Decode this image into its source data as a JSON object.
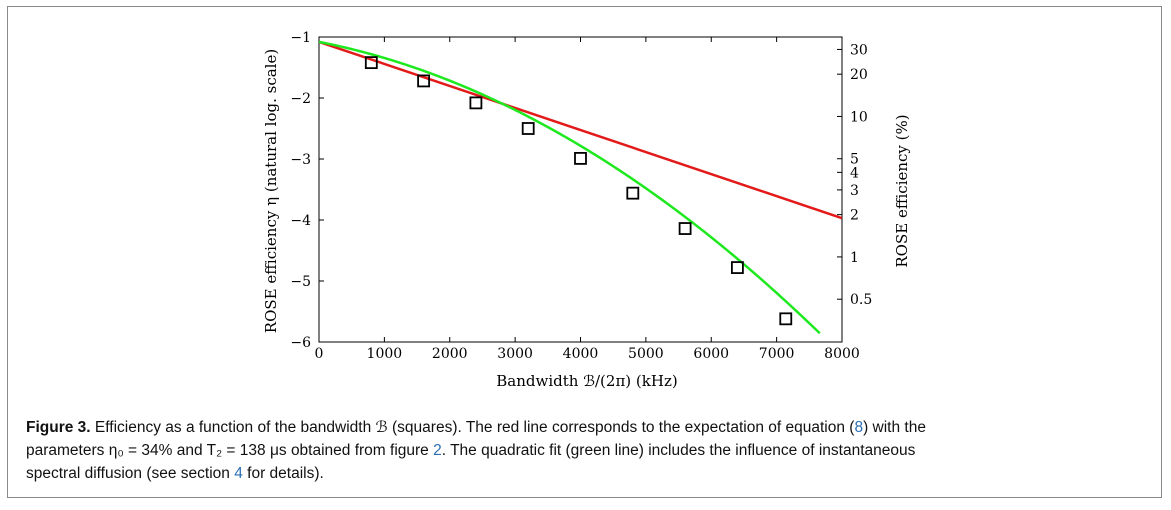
{
  "chart_data": {
    "type": "scatter",
    "xlabel": "Bandwidth ℬ/(2π) (kHz)",
    "ylabel": "ROSE efficiency η (natural log. scale)",
    "ylabel_right": "ROSE efficiency (%)",
    "xlim": [
      0,
      8000
    ],
    "ylim": [
      -6,
      -1
    ],
    "x_ticks": [
      0,
      1000,
      2000,
      3000,
      4000,
      5000,
      6000,
      7000,
      8000
    ],
    "y_ticks": [
      -1,
      -2,
      -3,
      -4,
      -5,
      -6
    ],
    "right_ticks": [
      {
        "label": "30",
        "percent": 30
      },
      {
        "label": "20",
        "percent": 20
      },
      {
        "label": "10",
        "percent": 10
      },
      {
        "label": "5",
        "percent": 5
      },
      {
        "label": "4",
        "percent": 4
      },
      {
        "label": "3",
        "percent": 3
      },
      {
        "label": "2",
        "percent": 2
      },
      {
        "label": "1",
        "percent": 1
      },
      {
        "label": "0.5",
        "percent": 0.5
      }
    ],
    "series": [
      {
        "marker": "square",
        "color": "#000000",
        "x": [
          800,
          1600,
          2400,
          3200,
          4000,
          4800,
          5600,
          6400,
          7140
        ],
        "y": [
          -1.42,
          -1.72,
          -2.08,
          -2.5,
          -2.99,
          -3.56,
          -4.14,
          -4.78,
          -5.62
        ]
      },
      {
        "kind": "line",
        "color": "#e31a1a",
        "x": [
          0,
          8000
        ],
        "y": [
          -1.08,
          -3.97
        ]
      },
      {
        "kind": "line",
        "color": "#1ee81e",
        "quadratic": {
          "a": -5.4e-08,
          "b": -0.00021,
          "c": -1.08
        },
        "x_end": 7660
      }
    ]
  },
  "caption": {
    "label": "Figure 3.",
    "line1": " Efficiency as a function of the bandwidth ℬ (squares). The red line corresponds to the expectation of equation (",
    "eq_ref": "8",
    "line1_end": ") with the",
    "line2": "parameters η₀ = 34% and T₂ = 138 μs obtained from figure ",
    "fig_ref": "2",
    "line2_end": ". The quadratic fit (green line) includes the influence of instantaneous",
    "line3": "spectral diffusion (see section ",
    "sec_ref": "4",
    "line3_end": " for details)."
  }
}
